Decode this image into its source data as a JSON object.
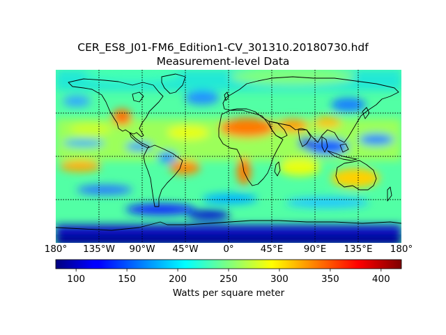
{
  "figure": {
    "title_line1": "CER_ES8_J01-FM6_Edition1-CV_301310.20180730.hdf",
    "title_line2": "Measurement-level Data"
  },
  "map": {
    "projection": "cylindrical",
    "lon_range": [
      -180,
      180
    ],
    "lat_range": [
      -90,
      90
    ],
    "gridlines": "dotted",
    "coastlines": true,
    "lon_ticks": [
      "180°",
      "135°W",
      "90°W",
      "45°W",
      "0°",
      "45°E",
      "90°E",
      "135°E",
      "180°"
    ],
    "lat_ticks": []
  },
  "colorbar": {
    "label": "Watts per square meter",
    "colormap": "jet",
    "range": [
      80,
      420
    ],
    "ticks": [
      "100",
      "150",
      "200",
      "250",
      "300",
      "350",
      "400"
    ],
    "tick_values": [
      100,
      150,
      200,
      250,
      300,
      350,
      400
    ]
  },
  "colors": {
    "coastline": "#000000",
    "gridline": "#000000",
    "jet_low": "#00007f",
    "jet_mid": "#7fff7f",
    "jet_high": "#7f0000"
  }
}
